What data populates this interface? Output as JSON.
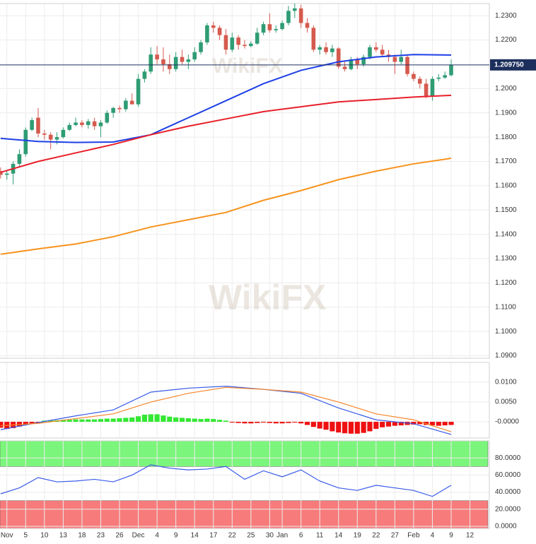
{
  "chart_data": [
    {
      "type": "candlestick",
      "watermark": "WikiFX",
      "xlim": [
        -0.1,
        78.1
      ],
      "x": [
        0,
        1,
        2,
        3,
        4,
        5,
        6,
        7,
        8,
        9,
        10,
        11,
        12,
        13,
        14,
        15,
        16,
        17,
        18,
        19,
        20,
        21,
        22,
        23,
        24,
        25,
        26,
        27,
        28,
        29,
        30,
        31,
        32,
        33,
        34,
        35,
        36,
        37,
        38,
        39,
        40,
        41,
        42,
        43,
        44,
        45,
        46,
        47,
        48,
        49,
        50,
        51,
        52,
        53,
        54,
        55,
        56,
        57,
        58,
        59,
        60,
        61,
        62,
        63,
        64,
        65,
        66,
        67,
        68,
        69,
        70,
        71,
        72
      ],
      "values": [
        [
          1.166,
          1.1675,
          1.163,
          1.1645
        ],
        [
          1.1645,
          1.166,
          1.1625,
          1.165
        ],
        [
          1.165,
          1.17,
          1.1605,
          1.169
        ],
        [
          1.169,
          1.175,
          1.168,
          1.173
        ],
        [
          1.173,
          1.184,
          1.172,
          1.183
        ],
        [
          1.183,
          1.188,
          1.1825,
          1.187
        ],
        [
          1.188,
          1.192,
          1.18,
          1.1815
        ],
        [
          1.1815,
          1.183,
          1.179,
          1.181
        ],
        [
          1.181,
          1.182,
          1.175,
          1.179
        ],
        [
          1.179,
          1.182,
          1.177,
          1.18
        ],
        [
          1.18,
          1.184,
          1.1795,
          1.183
        ],
        [
          1.183,
          1.186,
          1.1825,
          1.185
        ],
        [
          1.185,
          1.188,
          1.1845,
          1.186
        ],
        [
          1.186,
          1.187,
          1.184,
          1.185
        ],
        [
          1.185,
          1.1875,
          1.1835,
          1.1865
        ],
        [
          1.1865,
          1.188,
          1.183,
          1.1845
        ],
        [
          1.1845,
          1.187,
          1.18,
          1.186
        ],
        [
          1.186,
          1.191,
          1.1855,
          1.19
        ],
        [
          1.19,
          1.1925,
          1.188,
          1.192
        ],
        [
          1.192,
          1.193,
          1.19,
          1.1915
        ],
        [
          1.1915,
          1.196,
          1.1905,
          1.195
        ],
        [
          1.195,
          1.198,
          1.194,
          1.1935
        ],
        [
          1.1935,
          1.206,
          1.1925,
          1.204
        ],
        [
          1.204,
          1.208,
          1.2025,
          1.207
        ],
        [
          1.207,
          1.217,
          1.206,
          1.214
        ],
        [
          1.214,
          1.2175,
          1.21,
          1.212
        ],
        [
          1.212,
          1.217,
          1.207,
          1.21
        ],
        [
          1.21,
          1.214,
          1.206,
          1.208
        ],
        [
          1.208,
          1.215,
          1.207,
          1.213
        ],
        [
          1.213,
          1.216,
          1.21,
          1.211
        ],
        [
          1.211,
          1.214,
          1.208,
          1.212
        ],
        [
          1.212,
          1.217,
          1.211,
          1.215
        ],
        [
          1.215,
          1.22,
          1.214,
          1.219
        ],
        [
          1.219,
          1.227,
          1.218,
          1.226
        ],
        [
          1.226,
          1.2275,
          1.223,
          1.225
        ],
        [
          1.225,
          1.226,
          1.22,
          1.222
        ],
        [
          1.222,
          1.2245,
          1.214,
          1.216
        ],
        [
          1.216,
          1.223,
          1.215,
          1.221
        ],
        [
          1.221,
          1.222,
          1.216,
          1.218
        ],
        [
          1.218,
          1.22,
          1.2165,
          1.2175
        ],
        [
          1.2175,
          1.2195,
          1.217,
          1.2185
        ],
        [
          1.2185,
          1.225,
          1.218,
          1.223
        ],
        [
          1.223,
          1.2275,
          1.222,
          1.2265
        ],
        [
          1.2265,
          1.231,
          1.223,
          1.224
        ],
        [
          1.224,
          1.226,
          1.223,
          1.2245
        ],
        [
          1.2245,
          1.228,
          1.224,
          1.227
        ],
        [
          1.227,
          1.234,
          1.226,
          1.232
        ],
        [
          1.232,
          1.235,
          1.229,
          1.233
        ],
        [
          1.233,
          1.2345,
          1.225,
          1.227
        ],
        [
          1.227,
          1.229,
          1.223,
          1.225
        ],
        [
          1.225,
          1.226,
          1.215,
          1.216
        ],
        [
          1.216,
          1.218,
          1.214,
          1.217
        ],
        [
          1.217,
          1.219,
          1.214,
          1.215
        ],
        [
          1.215,
          1.218,
          1.213,
          1.2165
        ],
        [
          1.2165,
          1.217,
          1.208,
          1.209
        ],
        [
          1.209,
          1.211,
          1.207,
          1.208
        ],
        [
          1.208,
          1.213,
          1.2075,
          1.212
        ],
        [
          1.212,
          1.213,
          1.208,
          1.21
        ],
        [
          1.21,
          1.214,
          1.209,
          1.213
        ],
        [
          1.213,
          1.218,
          1.212,
          1.217
        ],
        [
          1.217,
          1.219,
          1.215,
          1.216
        ],
        [
          1.216,
          1.218,
          1.213,
          1.214
        ],
        [
          1.214,
          1.216,
          1.211,
          1.213
        ],
        [
          1.213,
          1.214,
          1.206,
          1.211
        ],
        [
          1.211,
          1.216,
          1.21,
          1.213
        ],
        [
          1.213,
          1.214,
          1.205,
          1.206
        ],
        [
          1.206,
          1.207,
          1.203,
          1.204
        ],
        [
          1.204,
          1.205,
          1.2,
          1.202
        ],
        [
          1.202,
          1.204,
          1.196,
          1.197
        ],
        [
          1.197,
          1.205,
          1.195,
          1.204
        ],
        [
          1.204,
          1.206,
          1.203,
          1.2045
        ],
        [
          1.2045,
          1.207,
          1.204,
          1.2055
        ],
        [
          1.2055,
          1.212,
          1.205,
          1.20975
        ]
      ],
      "up_color": "#2f9c74",
      "down_color": "#d55a4e",
      "series": [
        {
          "color": "#1d3fe6",
          "x": [
            0,
            6,
            12,
            18,
            24,
            30,
            36,
            42,
            48,
            54,
            60,
            66,
            72
          ],
          "values": [
            1.1795,
            1.1782,
            1.1778,
            1.178,
            1.181,
            1.188,
            1.195,
            1.202,
            1.2075,
            1.211,
            1.213,
            1.214,
            1.2138
          ]
        },
        {
          "color": "#e8202a",
          "x": [
            0,
            6,
            12,
            18,
            24,
            30,
            36,
            42,
            48,
            54,
            60,
            66,
            72
          ],
          "values": [
            1.1655,
            1.17,
            1.1735,
            1.177,
            1.181,
            1.1845,
            1.1875,
            1.1905,
            1.1925,
            1.1945,
            1.1955,
            1.1965,
            1.1972
          ]
        },
        {
          "color": "#f7931e",
          "x": [
            0,
            6,
            12,
            18,
            24,
            30,
            36,
            42,
            48,
            54,
            60,
            66,
            72
          ],
          "values": [
            1.1318,
            1.134,
            1.136,
            1.139,
            1.143,
            1.146,
            1.149,
            1.154,
            1.158,
            1.1625,
            1.166,
            1.169,
            1.1713
          ]
        }
      ],
      "last_price": {
        "value": 1.20975,
        "label": "1.209750"
      },
      "ylim": [
        1.089,
        1.235
      ],
      "yticks": [
        {
          "value": 1.09,
          "label": "1.0900"
        },
        {
          "value": 1.1,
          "label": "1.1000"
        },
        {
          "value": 1.11,
          "label": "1.1100"
        },
        {
          "value": 1.12,
          "label": "1.1200"
        },
        {
          "value": 1.13,
          "label": "1.1300"
        },
        {
          "value": 1.14,
          "label": "1.1400"
        },
        {
          "value": 1.15,
          "label": "1.1500"
        },
        {
          "value": 1.16,
          "label": "1.1600"
        },
        {
          "value": 1.17,
          "label": "1.1700"
        },
        {
          "value": 1.18,
          "label": "1.1800"
        },
        {
          "value": 1.19,
          "label": "1.1900"
        },
        {
          "value": 1.2,
          "label": "1.2000"
        },
        {
          "value": 1.22,
          "label": "1.2200"
        },
        {
          "value": 1.23,
          "label": "1.2300"
        }
      ],
      "grid": true
    },
    {
      "type": "macd",
      "xlim": [
        -0.1,
        78.1
      ],
      "x": [
        0,
        1,
        2,
        3,
        4,
        5,
        6,
        7,
        8,
        9,
        10,
        11,
        12,
        13,
        14,
        15,
        16,
        17,
        18,
        19,
        20,
        21,
        22,
        23,
        24,
        25,
        26,
        27,
        28,
        29,
        30,
        31,
        32,
        33,
        34,
        35,
        36,
        37,
        38,
        39,
        40,
        41,
        42,
        43,
        44,
        45,
        46,
        47,
        48,
        49,
        50,
        51,
        52,
        53,
        54,
        55,
        56,
        57,
        58,
        59,
        60,
        61,
        62,
        63,
        64,
        65,
        66,
        67,
        68,
        69,
        70,
        71,
        72
      ],
      "histogram": [
        -0.0015,
        -0.0018,
        -0.0016,
        -0.0012,
        -0.0008,
        -0.0004,
        -0.0002,
        0.0003,
        0.0004,
        0.0004,
        0.0005,
        0.0005,
        0.0006,
        0.0006,
        0.0006,
        0.0006,
        0.0007,
        0.0008,
        0.0008,
        0.0009,
        0.001,
        0.0011,
        0.0014,
        0.0018,
        0.0019,
        0.0019,
        0.0016,
        0.0013,
        0.0011,
        0.001,
        0.0009,
        0.0008,
        0.0007,
        0.0008,
        0.0007,
        0.0005,
        0.0003,
        -0.0002,
        -0.0003,
        -0.0004,
        -0.0004,
        -0.0003,
        -0.0002,
        -0.0003,
        -0.0004,
        -0.0004,
        -0.0003,
        -0.0002,
        -0.0004,
        -0.0008,
        -0.0013,
        -0.0017,
        -0.002,
        -0.0024,
        -0.0027,
        -0.0029,
        -0.003,
        -0.003,
        -0.0028,
        -0.0024,
        -0.0018,
        -0.0014,
        -0.0012,
        -0.001,
        -0.0009,
        -0.0008,
        -0.0007,
        -0.0006,
        -0.0008,
        -0.0009,
        -0.001,
        -0.0009,
        -0.0008
      ],
      "up_color": "#33e833",
      "down_color": "#ee1111",
      "series": [
        {
          "color": "#3a5be8",
          "x": [
            0,
            6,
            12,
            18,
            24,
            30,
            36,
            42,
            48,
            54,
            60,
            66,
            72
          ],
          "values": [
            -0.002,
            -0.0002,
            0.0015,
            0.003,
            0.0075,
            0.0085,
            0.009,
            0.0082,
            0.0072,
            0.0035,
            0.0005,
            -0.0005,
            -0.0032
          ]
        },
        {
          "color": "#f7862a",
          "x": [
            0,
            6,
            12,
            18,
            24,
            30,
            36,
            42,
            48,
            54,
            60,
            66,
            72
          ],
          "values": [
            -0.001,
            -0.0004,
            0.0008,
            0.002,
            0.005,
            0.0072,
            0.0087,
            0.0082,
            0.0075,
            0.005,
            0.002,
            0.0005,
            -0.0025
          ]
        }
      ],
      "ylim": [
        -0.0041,
        0.015
      ],
      "yticks": [
        {
          "value": 0.01,
          "label": "0.0100"
        },
        {
          "value": 0.005,
          "label": "0.0050"
        },
        {
          "value": 0,
          "label": "-0.0000"
        }
      ],
      "grid": true
    },
    {
      "type": "line",
      "xlim": [
        -0.1,
        78.1
      ],
      "bands": [
        {
          "range": [
            70,
            100
          ],
          "color": "#7cf57c"
        },
        {
          "range": [
            -2.5,
            30
          ],
          "color": "#f77b7b"
        }
      ],
      "series": [
        {
          "color": "#3a5be8",
          "x": [
            0,
            3,
            6,
            9,
            12,
            15,
            18,
            21,
            24,
            27,
            30,
            33,
            36,
            39,
            42,
            45,
            48,
            51,
            54,
            57,
            60,
            63,
            66,
            69,
            72
          ],
          "values": [
            38,
            45,
            57,
            52,
            53,
            55,
            52,
            60,
            72,
            68,
            66,
            67,
            70,
            55,
            65,
            58,
            66,
            53,
            45,
            42,
            48,
            45,
            42,
            35,
            48
          ]
        }
      ],
      "ylim": [
        -2.5,
        100
      ],
      "yticks": [
        {
          "value": 0,
          "label": "0.0000"
        },
        {
          "value": 20,
          "label": "20.0000"
        },
        {
          "value": 40,
          "label": "40.0000"
        },
        {
          "value": 60,
          "label": "60.0000"
        },
        {
          "value": 80,
          "label": "80.0000"
        }
      ],
      "xticks": [
        {
          "value": 1,
          "label": "Nov"
        },
        {
          "value": 4,
          "label": "5"
        },
        {
          "value": 7,
          "label": "10"
        },
        {
          "value": 10,
          "label": "13"
        },
        {
          "value": 13,
          "label": "18"
        },
        {
          "value": 16,
          "label": "23"
        },
        {
          "value": 19,
          "label": "26"
        },
        {
          "value": 22,
          "label": "Dec"
        },
        {
          "value": 25,
          "label": "4"
        },
        {
          "value": 28,
          "label": "9"
        },
        {
          "value": 31,
          "label": "14"
        },
        {
          "value": 34,
          "label": "17"
        },
        {
          "value": 37,
          "label": "22"
        },
        {
          "value": 40,
          "label": "25"
        },
        {
          "value": 43,
          "label": "30"
        },
        {
          "value": 45,
          "label": "Jan"
        },
        {
          "value": 48,
          "label": "6"
        },
        {
          "value": 51,
          "label": "11"
        },
        {
          "value": 54,
          "label": "14"
        },
        {
          "value": 57,
          "label": "19"
        },
        {
          "value": 60,
          "label": "22"
        },
        {
          "value": 63,
          "label": "27"
        },
        {
          "value": 66,
          "label": "Feb"
        },
        {
          "value": 69,
          "label": "4"
        },
        {
          "value": 72,
          "label": "9"
        },
        {
          "value": 75,
          "label": "12"
        }
      ],
      "grid": true
    }
  ]
}
